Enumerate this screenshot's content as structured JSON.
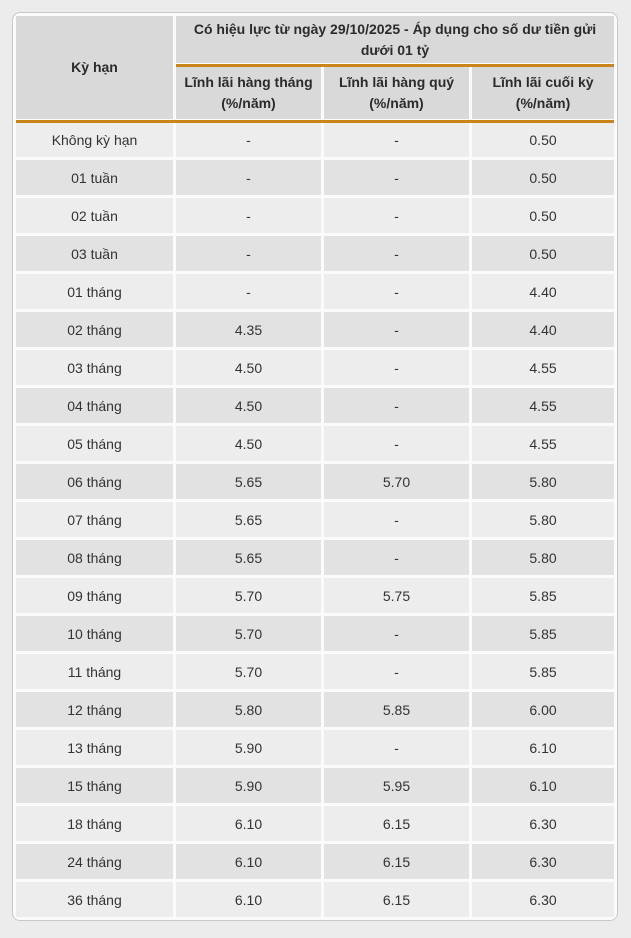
{
  "theme": {
    "accent_line_color": "#c8861a",
    "header_bg": "#d9d9d9",
    "row_light_bg": "#ededed",
    "row_dark_bg": "#e2e2e2",
    "page_bg": "#ececec",
    "text_color": "#333333"
  },
  "table": {
    "term_header": "Kỳ hạn",
    "effective_header": "Có hiệu lực từ ngày 29/10/2025 - Áp dụng cho số dư tiền gửi dưới 01 tỷ",
    "columns": [
      "Lĩnh lãi hàng tháng\n(%/năm)",
      "Lĩnh lãi hàng quý\n(%/năm)",
      "Lĩnh lãi cuối kỳ\n(%/năm)"
    ],
    "rows": [
      {
        "term": "Không kỳ hạn",
        "monthly": "-",
        "quarterly": "-",
        "end_of_term": "0.50"
      },
      {
        "term": "01 tuần",
        "monthly": "-",
        "quarterly": "-",
        "end_of_term": "0.50"
      },
      {
        "term": "02 tuần",
        "monthly": "-",
        "quarterly": "-",
        "end_of_term": "0.50"
      },
      {
        "term": "03 tuần",
        "monthly": "-",
        "quarterly": "-",
        "end_of_term": "0.50"
      },
      {
        "term": "01 tháng",
        "monthly": "-",
        "quarterly": "-",
        "end_of_term": "4.40"
      },
      {
        "term": "02 tháng",
        "monthly": "4.35",
        "quarterly": "-",
        "end_of_term": "4.40"
      },
      {
        "term": "03 tháng",
        "monthly": "4.50",
        "quarterly": "-",
        "end_of_term": "4.55"
      },
      {
        "term": "04 tháng",
        "monthly": "4.50",
        "quarterly": "-",
        "end_of_term": "4.55"
      },
      {
        "term": "05 tháng",
        "monthly": "4.50",
        "quarterly": "-",
        "end_of_term": "4.55"
      },
      {
        "term": "06 tháng",
        "monthly": "5.65",
        "quarterly": "5.70",
        "end_of_term": "5.80"
      },
      {
        "term": "07 tháng",
        "monthly": "5.65",
        "quarterly": "-",
        "end_of_term": "5.80"
      },
      {
        "term": "08 tháng",
        "monthly": "5.65",
        "quarterly": "-",
        "end_of_term": "5.80"
      },
      {
        "term": "09 tháng",
        "monthly": "5.70",
        "quarterly": "5.75",
        "end_of_term": "5.85"
      },
      {
        "term": "10 tháng",
        "monthly": "5.70",
        "quarterly": "-",
        "end_of_term": "5.85"
      },
      {
        "term": "11 tháng",
        "monthly": "5.70",
        "quarterly": "-",
        "end_of_term": "5.85"
      },
      {
        "term": "12 tháng",
        "monthly": "5.80",
        "quarterly": "5.85",
        "end_of_term": "6.00"
      },
      {
        "term": "13 tháng",
        "monthly": "5.90",
        "quarterly": "-",
        "end_of_term": "6.10"
      },
      {
        "term": "15 tháng",
        "monthly": "5.90",
        "quarterly": "5.95",
        "end_of_term": "6.10"
      },
      {
        "term": "18 tháng",
        "monthly": "6.10",
        "quarterly": "6.15",
        "end_of_term": "6.30"
      },
      {
        "term": "24 tháng",
        "monthly": "6.10",
        "quarterly": "6.15",
        "end_of_term": "6.30"
      },
      {
        "term": "36 tháng",
        "monthly": "6.10",
        "quarterly": "6.15",
        "end_of_term": "6.30"
      }
    ]
  }
}
